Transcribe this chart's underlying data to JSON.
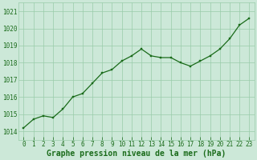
{
  "x": [
    0,
    1,
    2,
    3,
    4,
    5,
    6,
    7,
    8,
    9,
    10,
    11,
    12,
    13,
    14,
    15,
    16,
    17,
    18,
    19,
    20,
    21,
    22,
    23
  ],
  "y": [
    1014.2,
    1014.7,
    1014.9,
    1014.8,
    1015.3,
    1016.0,
    1016.2,
    1016.8,
    1017.4,
    1017.6,
    1018.1,
    1018.4,
    1018.8,
    1018.4,
    1018.3,
    1018.3,
    1018.0,
    1017.8,
    1018.1,
    1018.4,
    1018.8,
    1019.4,
    1020.2,
    1020.6
  ],
  "line_color": "#1a6b1a",
  "marker_color": "#1a6b1a",
  "bg_color": "#cce8d8",
  "grid_color": "#99ccaa",
  "xlabel": "Graphe pression niveau de la mer (hPa)",
  "xlabel_color": "#1a6b1a",
  "ylim": [
    1013.5,
    1021.5
  ],
  "xlim": [
    -0.5,
    23.5
  ],
  "yticks": [
    1014,
    1015,
    1016,
    1017,
    1018,
    1019,
    1020,
    1021
  ],
  "xtick_labels": [
    "0",
    "1",
    "2",
    "3",
    "4",
    "5",
    "6",
    "7",
    "8",
    "9",
    "10",
    "11",
    "12",
    "13",
    "14",
    "15",
    "16",
    "17",
    "18",
    "19",
    "20",
    "21",
    "22",
    "23"
  ],
  "tick_fontsize": 5.5,
  "label_fontsize": 7
}
